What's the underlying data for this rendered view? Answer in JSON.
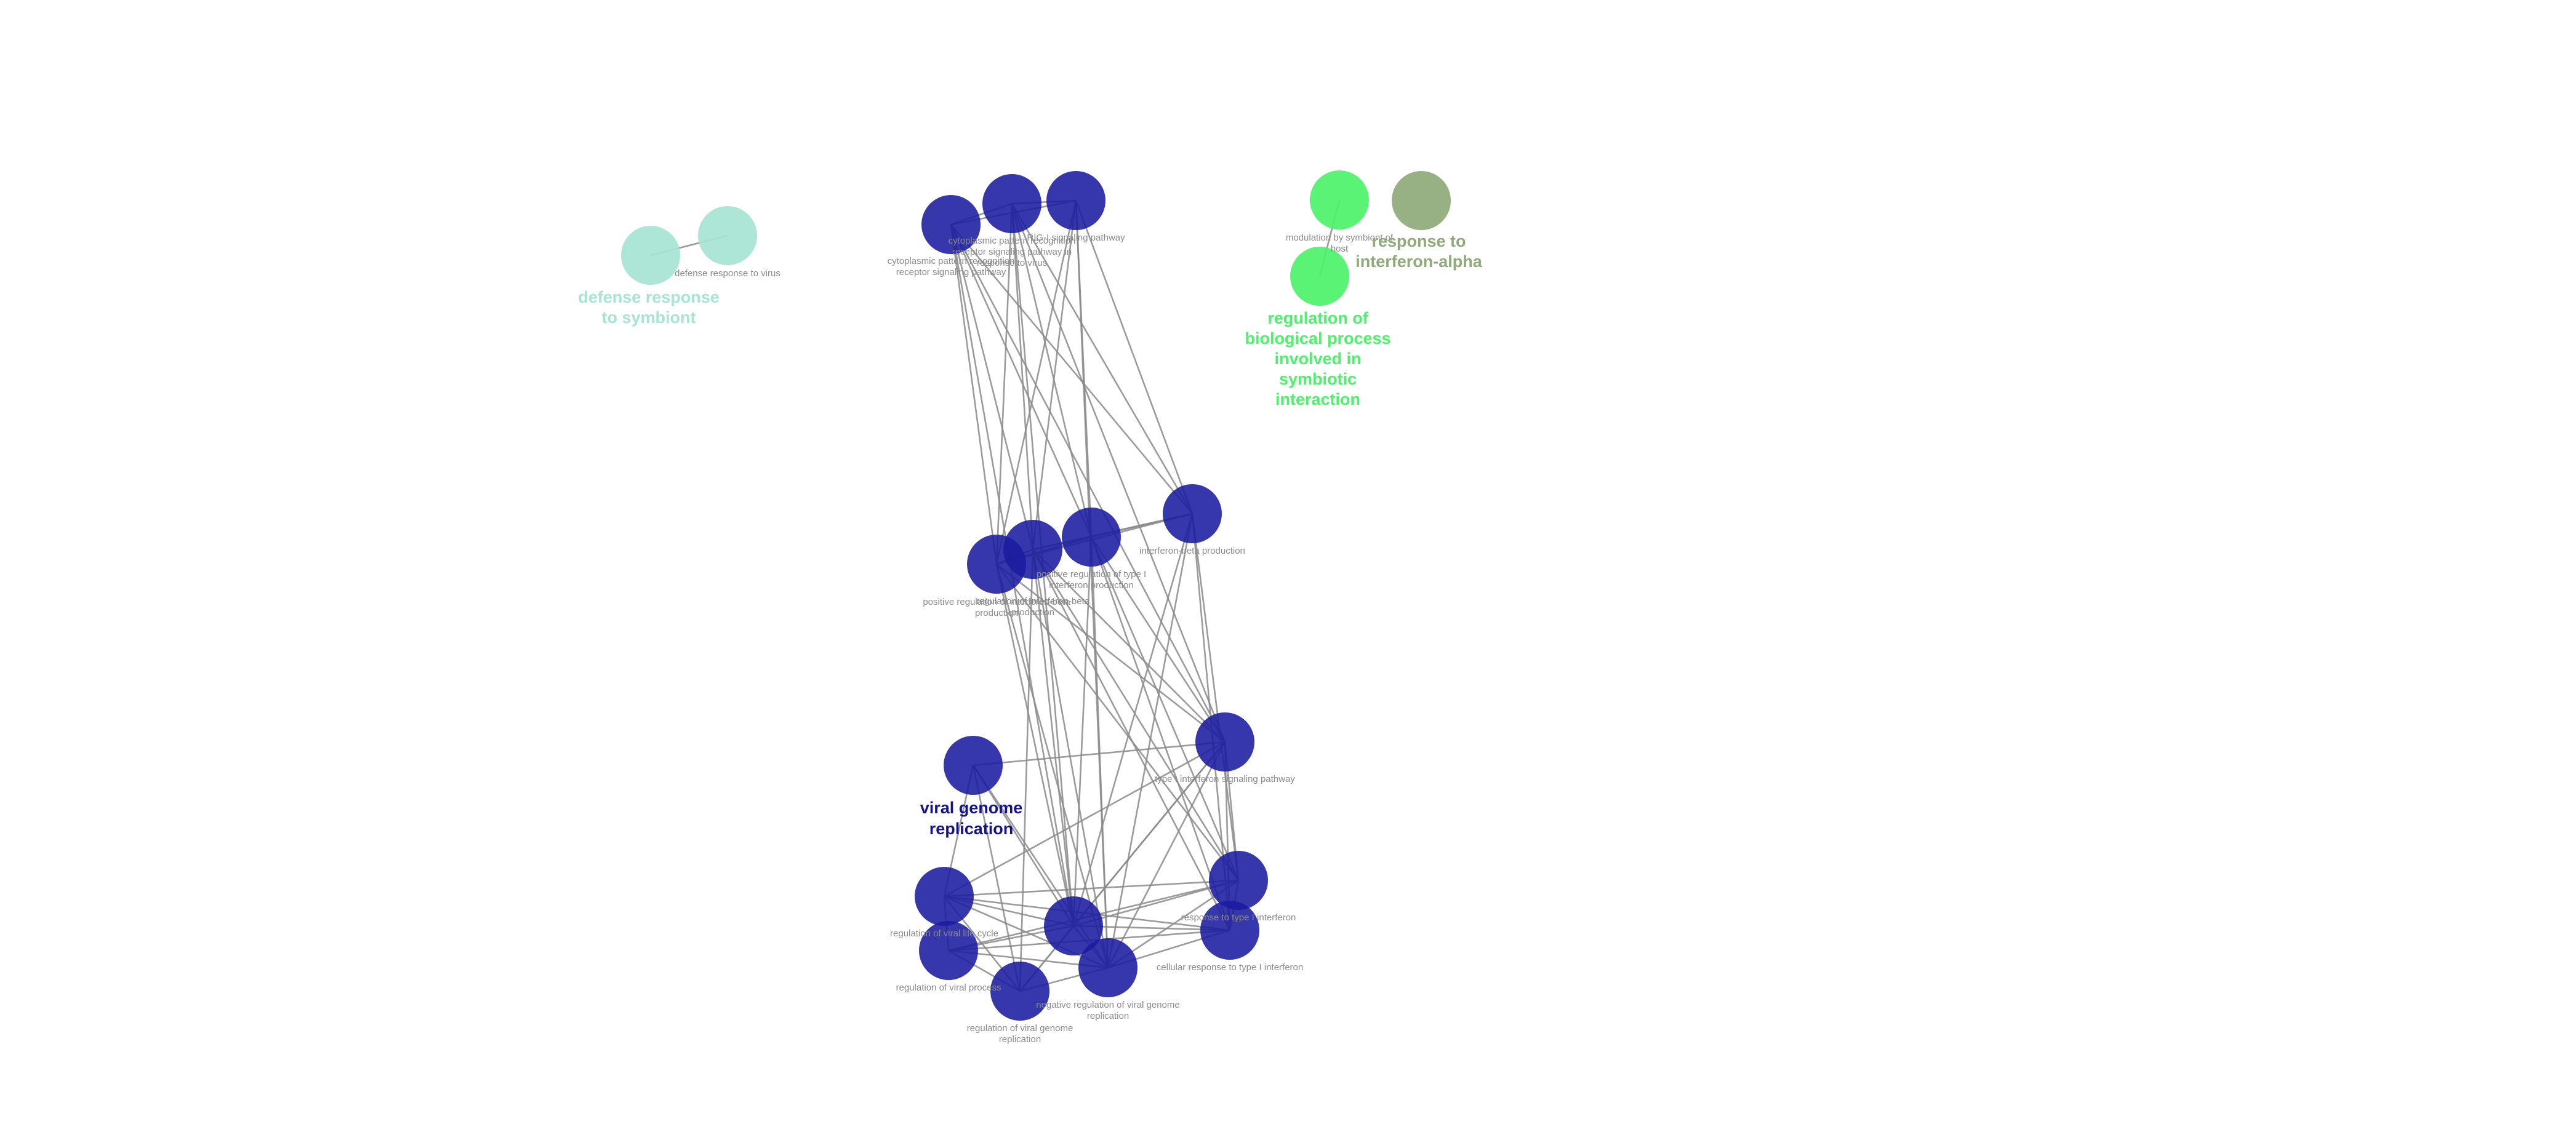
{
  "graph": {
    "groups": [
      {
        "id": "g1",
        "title_lines": [
          "defense response",
          "to symbiont"
        ],
        "color": "#a6e4d3"
      },
      {
        "id": "g2",
        "title_lines": [
          "regulation of",
          "biological process",
          "involved in",
          "symbiotic",
          "interaction"
        ],
        "color": "#4cf26a"
      },
      {
        "id": "g3",
        "title_lines": [
          "response to",
          "interferon-alpha"
        ],
        "color": "#8faa79"
      },
      {
        "id": "g4",
        "title_lines": [
          "viral genome",
          "replication"
        ],
        "color": "#1b1ba0"
      }
    ],
    "nodes": [
      {
        "id": "n1",
        "group": "g1",
        "label_lines": []
      },
      {
        "id": "n2",
        "group": "g1",
        "label_lines": [
          "defense response to virus"
        ]
      },
      {
        "id": "n3",
        "group": "g2",
        "label_lines": [
          "modulation by symbiont of",
          "host"
        ]
      },
      {
        "id": "n4",
        "group": "g2",
        "label_lines": []
      },
      {
        "id": "n5",
        "group": "g3",
        "label_lines": []
      },
      {
        "id": "n6",
        "group": "g4",
        "label_lines": [
          "cytoplasmic pattern recognition",
          "receptor signaling pathway"
        ]
      },
      {
        "id": "n7",
        "group": "g4",
        "label_lines": [
          "cytoplasmic pattern recognition",
          "receptor signaling pathway in",
          "response to virus"
        ]
      },
      {
        "id": "n8",
        "group": "g4",
        "label_lines": [
          "RIG-I signaling pathway"
        ]
      },
      {
        "id": "n9",
        "group": "g4",
        "label_lines": [
          "interferon-beta production"
        ]
      },
      {
        "id": "n10",
        "group": "g4",
        "label_lines": [
          "positive regulation of interferon-beta",
          "production"
        ]
      },
      {
        "id": "n11",
        "group": "g4",
        "label_lines": [
          "regulation of interferon-beta",
          "production"
        ]
      },
      {
        "id": "n12",
        "group": "g4",
        "label_lines": [
          "positive regulation of type I",
          "interferon production"
        ]
      },
      {
        "id": "n13",
        "group": "g4",
        "label_lines": [
          "type I interferon signaling pathway"
        ]
      },
      {
        "id": "n14",
        "group": "g4",
        "label_lines": []
      },
      {
        "id": "n15",
        "group": "g4",
        "label_lines": [
          "response to type I interferon"
        ]
      },
      {
        "id": "n16",
        "group": "g4",
        "label_lines": [
          "cellular response to type I interferon"
        ]
      },
      {
        "id": "n17",
        "group": "g4",
        "label_lines": [
          "regulation of viral life cycle"
        ]
      },
      {
        "id": "n18",
        "group": "g4",
        "label_lines": [
          "regulation of viral process"
        ]
      },
      {
        "id": "n19",
        "group": "g4",
        "label_lines": []
      },
      {
        "id": "n20",
        "group": "g4",
        "label_lines": [
          "negative regulation of viral genome",
          "replication"
        ]
      },
      {
        "id": "n21",
        "group": "g4",
        "label_lines": [
          "regulation of viral genome",
          "replication"
        ]
      }
    ],
    "edges": [
      [
        "n1",
        "n2"
      ],
      [
        "n3",
        "n4"
      ],
      [
        "n6",
        "n7"
      ],
      [
        "n6",
        "n8"
      ],
      [
        "n7",
        "n8"
      ],
      [
        "n6",
        "n10"
      ],
      [
        "n6",
        "n11"
      ],
      [
        "n6",
        "n12"
      ],
      [
        "n6",
        "n9"
      ],
      [
        "n6",
        "n19"
      ],
      [
        "n6",
        "n13"
      ],
      [
        "n7",
        "n10"
      ],
      [
        "n7",
        "n11"
      ],
      [
        "n7",
        "n12"
      ],
      [
        "n7",
        "n9"
      ],
      [
        "n7",
        "n19"
      ],
      [
        "n7",
        "n13"
      ],
      [
        "n8",
        "n10"
      ],
      [
        "n8",
        "n11"
      ],
      [
        "n8",
        "n12"
      ],
      [
        "n8",
        "n9"
      ],
      [
        "n8",
        "n20"
      ],
      [
        "n9",
        "n10"
      ],
      [
        "n9",
        "n11"
      ],
      [
        "n9",
        "n12"
      ],
      [
        "n9",
        "n15"
      ],
      [
        "n9",
        "n16"
      ],
      [
        "n9",
        "n19"
      ],
      [
        "n9",
        "n20"
      ],
      [
        "n10",
        "n11"
      ],
      [
        "n10",
        "n12"
      ],
      [
        "n11",
        "n12"
      ],
      [
        "n10",
        "n13"
      ],
      [
        "n11",
        "n13"
      ],
      [
        "n12",
        "n13"
      ],
      [
        "n10",
        "n19"
      ],
      [
        "n11",
        "n19"
      ],
      [
        "n12",
        "n19"
      ],
      [
        "n10",
        "n20"
      ],
      [
        "n11",
        "n20"
      ],
      [
        "n12",
        "n20"
      ],
      [
        "n10",
        "n15"
      ],
      [
        "n11",
        "n15"
      ],
      [
        "n12",
        "n15"
      ],
      [
        "n11",
        "n16"
      ],
      [
        "n12",
        "n16"
      ],
      [
        "n11",
        "n21"
      ],
      [
        "n14",
        "n13"
      ],
      [
        "n14",
        "n21"
      ],
      [
        "n14",
        "n20"
      ],
      [
        "n14",
        "n19"
      ],
      [
        "n14",
        "n17"
      ],
      [
        "n13",
        "n15"
      ],
      [
        "n13",
        "n16"
      ],
      [
        "n13",
        "n19"
      ],
      [
        "n13",
        "n20"
      ],
      [
        "n13",
        "n21"
      ],
      [
        "n13",
        "n17"
      ],
      [
        "n15",
        "n16"
      ],
      [
        "n15",
        "n19"
      ],
      [
        "n15",
        "n20"
      ],
      [
        "n15",
        "n17"
      ],
      [
        "n15",
        "n18"
      ],
      [
        "n16",
        "n19"
      ],
      [
        "n16",
        "n20"
      ],
      [
        "n16",
        "n18"
      ],
      [
        "n16",
        "n17"
      ],
      [
        "n17",
        "n18"
      ],
      [
        "n17",
        "n19"
      ],
      [
        "n17",
        "n20"
      ],
      [
        "n17",
        "n21"
      ],
      [
        "n18",
        "n19"
      ],
      [
        "n18",
        "n20"
      ],
      [
        "n18",
        "n21"
      ],
      [
        "n19",
        "n20"
      ],
      [
        "n19",
        "n21"
      ],
      [
        "n20",
        "n21"
      ]
    ]
  }
}
